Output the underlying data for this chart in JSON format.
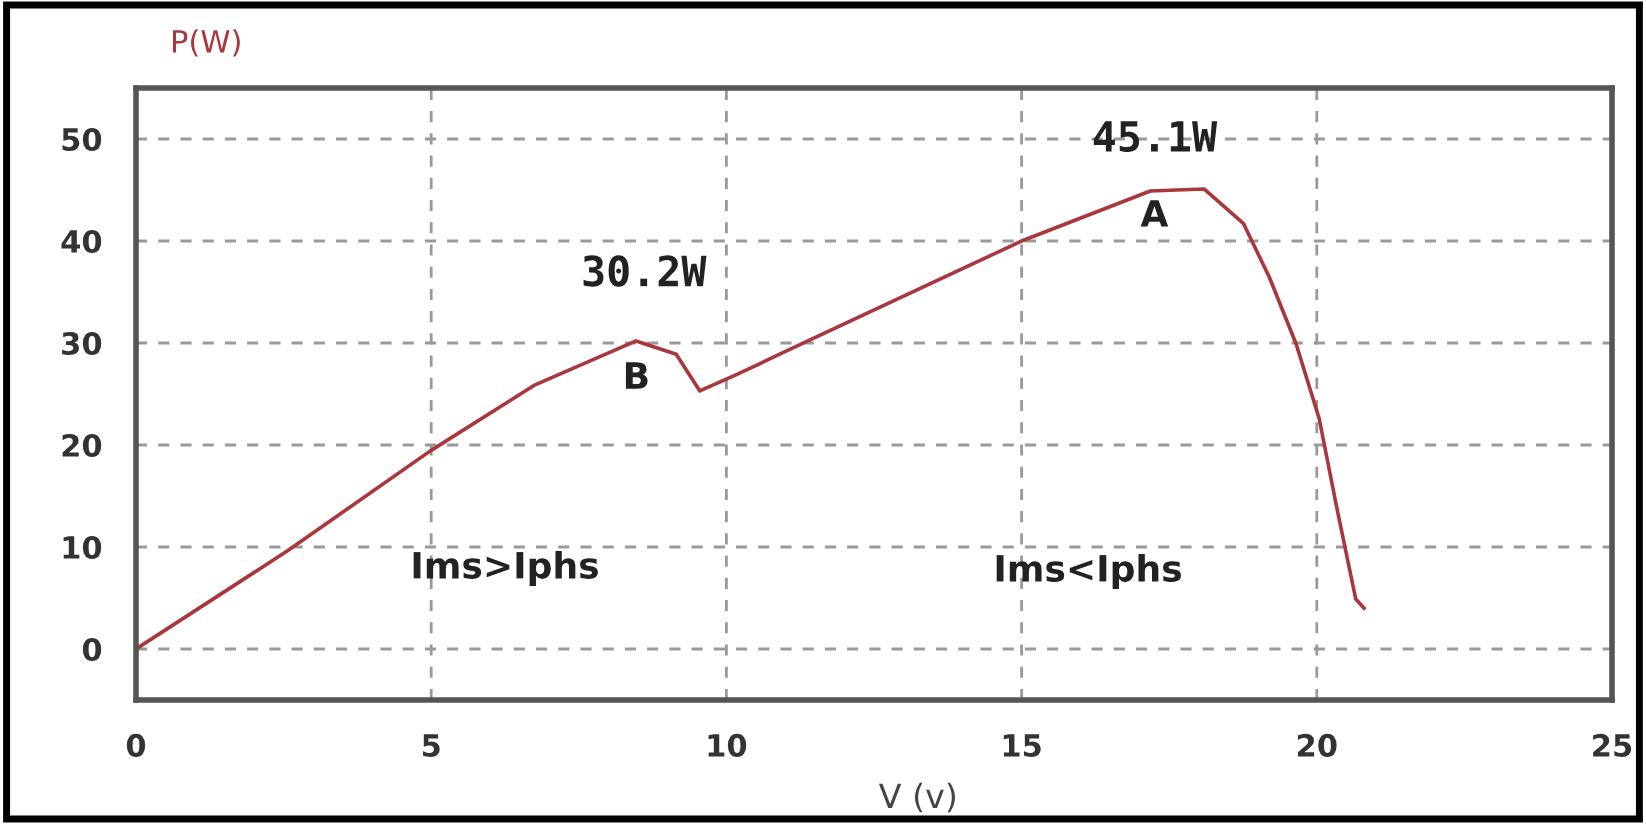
{
  "chart_data": {
    "type": "line",
    "xlabel": "V (v)",
    "ylabel": "P(W)",
    "series": [
      {
        "color": "#a8383c",
        "x": [
          0,
          2.56,
          4.98,
          6.76,
          8.47,
          9.15,
          9.55,
          10.17,
          11.38,
          15,
          17.18,
          18.09,
          18.76,
          19.2,
          19.65,
          20.04,
          20.33,
          20.66,
          20.8
        ],
        "values": [
          0,
          9.6,
          19.4,
          25.9,
          30.2,
          28.9,
          25.3,
          26.9,
          30.2,
          40,
          44.9,
          45.1,
          41.7,
          36.4,
          29.9,
          22.6,
          14.1,
          4.9,
          4
        ]
      }
    ],
    "xlim": [
      0,
      25
    ],
    "xticks": [
      0,
      5,
      10,
      15,
      20,
      25
    ],
    "ylim": [
      -5,
      55
    ],
    "yticks": [
      0,
      10,
      20,
      30,
      40,
      50
    ],
    "grid": true,
    "line_style": "solid",
    "marker": "none",
    "annotations": [
      "30.2W",
      "B",
      "45.1W",
      "A",
      "Ims>Iphs",
      "Ims<Iphs"
    ]
  }
}
